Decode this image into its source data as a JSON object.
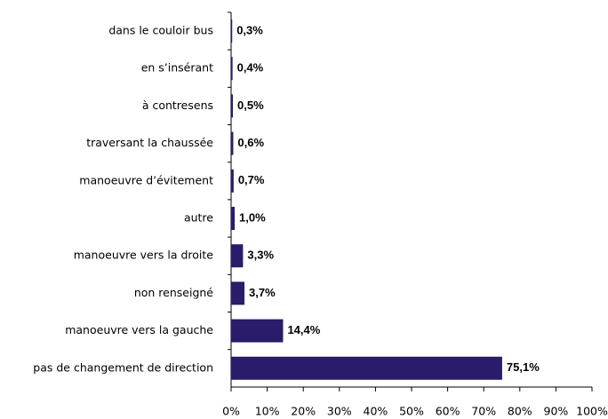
{
  "chart_data": {
    "type": "bar",
    "orientation": "horizontal",
    "categories": [
      "dans le couloir bus",
      "en s’insérant",
      "à contresens",
      "traversant la chaussée",
      "manoeuvre d’évitement",
      "autre",
      "manoeuvre vers la droite",
      "non renseigné",
      "manoeuvre vers la gauche",
      "pas de changement de direction"
    ],
    "values": [
      0.3,
      0.4,
      0.5,
      0.6,
      0.7,
      1.0,
      3.3,
      3.7,
      14.4,
      75.1
    ],
    "value_labels": [
      "0,3%",
      "0,4%",
      "0,5%",
      "0,6%",
      "0,7%",
      "1,0%",
      "3,3%",
      "3,7%",
      "14,4%",
      "75,1%"
    ],
    "color": "#2b1b6b",
    "xlim": [
      0,
      100
    ],
    "xticks": [
      {
        "value": 0,
        "label": "0%"
      },
      {
        "value": 10,
        "label": "10%"
      },
      {
        "value": 20,
        "label": "20%"
      },
      {
        "value": 30,
        "label": "30%"
      },
      {
        "value": 40,
        "label": "40%"
      },
      {
        "value": 50,
        "label": "50%"
      },
      {
        "value": 60,
        "label": "60%"
      },
      {
        "value": 70,
        "label": "70%"
      },
      {
        "value": 80,
        "label": "80%"
      },
      {
        "value": 90,
        "label": "90%"
      },
      {
        "value": 100,
        "label": "100%"
      }
    ]
  }
}
